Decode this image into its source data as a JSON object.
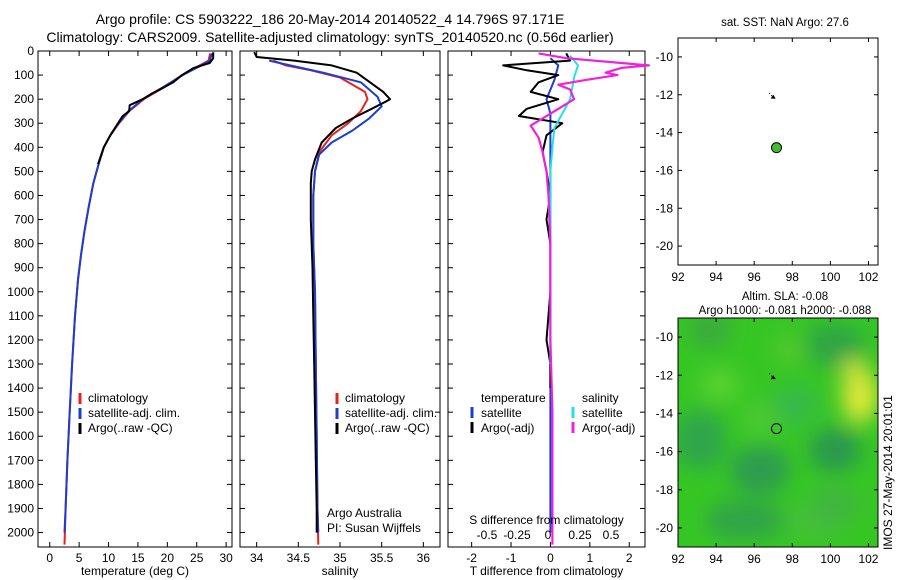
{
  "header": {
    "line1": "Argo profile: CS 5903222_186 20-May-2014 20140522_4 14.796S 97.171E",
    "line2": "Climatology: CARS2009. Satellite-adjusted climatology: synTS_20140520.nc (0.56d earlier)"
  },
  "map_top": {
    "title": "sat. SST: NaN Argo: 27.6"
  },
  "map_bottom": {
    "title1": "Altim. SLA: -0.08",
    "title2": "Argo h1000: -0.081 h2000: -0.088"
  },
  "stamp": "IMOS 27-May-2014 20:01:01",
  "colors": {
    "clim": "#e8221b",
    "sat": "#1b3ed1",
    "argo": "#000000",
    "ssat": "#22e0e8",
    "sargo": "#ee22dd",
    "map_bg": "#36c624",
    "float_marker": "#3fbf2b"
  },
  "chart_data": [
    {
      "type": "line",
      "name": "temperature",
      "xlabel": "temperature (deg C)",
      "ylabel": "depth",
      "xlim": [
        -2,
        31
      ],
      "ylim": [
        2060,
        0
      ],
      "y_reversed": true,
      "xticks": [
        0,
        5,
        10,
        15,
        20,
        25,
        30
      ],
      "yticks": [
        0,
        100,
        200,
        300,
        400,
        500,
        600,
        700,
        800,
        900,
        1000,
        1100,
        1200,
        1300,
        1400,
        1500,
        1600,
        1700,
        1800,
        1900,
        2000
      ],
      "legend": [
        "climatology",
        "satellite-adj. clim.",
        "Argo(..raw -QC)"
      ],
      "series": [
        {
          "name": "climatology",
          "color": "clim",
          "points": [
            [
              27.3,
              10
            ],
            [
              27.0,
              40
            ],
            [
              25.5,
              60
            ],
            [
              22.5,
              100
            ],
            [
              19.5,
              150
            ],
            [
              16.0,
              200
            ],
            [
              13.5,
              250
            ],
            [
              11.8,
              300
            ],
            [
              10.3,
              350
            ],
            [
              9.2,
              400
            ],
            [
              8.3,
              470
            ],
            [
              7.4,
              550
            ],
            [
              6.6,
              650
            ],
            [
              5.9,
              750
            ],
            [
              5.3,
              850
            ],
            [
              4.8,
              950
            ],
            [
              4.3,
              1100
            ],
            [
              3.8,
              1300
            ],
            [
              3.4,
              1500
            ],
            [
              3.0,
              1700
            ],
            [
              2.7,
              1900
            ],
            [
              2.5,
              2050
            ]
          ]
        },
        {
          "name": "satellite-adj. clim.",
          "color": "sat",
          "points": [
            [
              27.6,
              10
            ],
            [
              27.2,
              40
            ],
            [
              25.8,
              60
            ],
            [
              22.6,
              100
            ],
            [
              19.3,
              150
            ],
            [
              15.8,
              200
            ],
            [
              13.4,
              250
            ],
            [
              11.7,
              300
            ],
            [
              10.3,
              350
            ],
            [
              9.2,
              400
            ],
            [
              8.3,
              470
            ],
            [
              7.4,
              550
            ],
            [
              6.6,
              650
            ],
            [
              5.9,
              750
            ],
            [
              5.3,
              850
            ],
            [
              4.8,
              950
            ],
            [
              4.3,
              1100
            ],
            [
              3.8,
              1300
            ],
            [
              3.4,
              1500
            ],
            [
              3.0,
              1700
            ],
            [
              2.7,
              1900
            ],
            [
              2.5,
              2000
            ]
          ]
        },
        {
          "name": "Argo",
          "color": "argo",
          "points": [
            [
              27.8,
              5
            ],
            [
              27.8,
              30
            ],
            [
              27.2,
              50
            ],
            [
              24.5,
              70
            ],
            [
              22.5,
              100
            ],
            [
              21.0,
              130
            ],
            [
              19.5,
              150
            ],
            [
              17.5,
              175
            ],
            [
              15.8,
              200
            ],
            [
              13.6,
              225
            ],
            [
              13.5,
              250
            ],
            [
              12.4,
              270
            ],
            [
              11.6,
              300
            ],
            [
              10.3,
              350
            ],
            [
              9.2,
              400
            ],
            [
              8.2,
              470
            ]
          ]
        }
      ]
    },
    {
      "type": "line",
      "name": "salinity",
      "xlabel": "salinity",
      "xlim": [
        33.8,
        36.2
      ],
      "ylim": [
        2060,
        0
      ],
      "y_reversed": true,
      "xticks": [
        34,
        34.5,
        35,
        35.5,
        36
      ],
      "legend": [
        "climatology",
        "satellite-adj. clim.",
        "Argo(..raw -QC)"
      ],
      "annotation": [
        "Argo Australia",
        "PI: Susan Wijffels"
      ],
      "series": [
        {
          "name": "climatology",
          "color": "clim",
          "points": [
            [
              34.2,
              40
            ],
            [
              34.35,
              60
            ],
            [
              34.65,
              80
            ],
            [
              35.0,
              110
            ],
            [
              35.3,
              170
            ],
            [
              35.33,
              200
            ],
            [
              35.25,
              250
            ],
            [
              35.1,
              300
            ],
            [
              34.9,
              350
            ],
            [
              34.75,
              420
            ],
            [
              34.7,
              500
            ],
            [
              34.68,
              600
            ],
            [
              34.68,
              800
            ],
            [
              34.7,
              1000
            ],
            [
              34.71,
              1300
            ],
            [
              34.72,
              1600
            ],
            [
              34.73,
              1900
            ],
            [
              34.74,
              2050
            ]
          ]
        },
        {
          "name": "satellite-adj. clim.",
          "color": "sat",
          "points": [
            [
              34.15,
              40
            ],
            [
              34.4,
              60
            ],
            [
              34.8,
              90
            ],
            [
              35.25,
              130
            ],
            [
              35.45,
              190
            ],
            [
              35.5,
              230
            ],
            [
              35.35,
              280
            ],
            [
              35.15,
              330
            ],
            [
              34.9,
              380
            ],
            [
              34.75,
              430
            ],
            [
              34.7,
              500
            ],
            [
              34.68,
              600
            ],
            [
              34.68,
              800
            ],
            [
              34.7,
              1000
            ],
            [
              34.71,
              1300
            ],
            [
              34.72,
              1600
            ],
            [
              34.73,
              1900
            ],
            [
              34.74,
              2000
            ]
          ]
        },
        {
          "name": "Argo",
          "color": "argo",
          "points": [
            [
              33.97,
              5
            ],
            [
              34.0,
              25
            ],
            [
              34.45,
              40
            ],
            [
              34.9,
              60
            ],
            [
              35.2,
              90
            ],
            [
              35.52,
              170
            ],
            [
              35.6,
              200
            ],
            [
              35.55,
              210
            ],
            [
              35.38,
              240
            ],
            [
              35.15,
              280
            ],
            [
              34.95,
              320
            ],
            [
              34.78,
              380
            ],
            [
              34.7,
              450
            ],
            [
              34.66,
              500
            ],
            [
              34.65,
              550
            ],
            [
              34.65,
              700
            ],
            [
              34.67,
              900
            ],
            [
              34.68,
              1100
            ],
            [
              34.69,
              1300
            ],
            [
              34.7,
              1500
            ],
            [
              34.71,
              1700
            ],
            [
              34.72,
              1900
            ],
            [
              34.72,
              2000
            ]
          ]
        }
      ]
    },
    {
      "type": "line",
      "name": "differences",
      "xlabel_top": "S difference from climatology",
      "xlabel": "T difference from climatology",
      "xlim": [
        -2.6,
        2.4
      ],
      "ylim": [
        2060,
        0
      ],
      "y_reversed": true,
      "xticks": [
        -2,
        -1,
        0,
        1,
        2
      ],
      "s_ticks": [
        "-0.5",
        "-0.25",
        "0",
        "0.25",
        "0.5"
      ],
      "legend": {
        "temperature_head": "temperature",
        "salinity_head": "salinity",
        "t_sat": "satellite",
        "t_argo": "Argo(-adj)",
        "s_sat": "satellite",
        "s_argo": "Argo(-adj)"
      },
      "series": [
        {
          "name": "T satellite",
          "color": "sat",
          "points": [
            [
              0,
              30
            ],
            [
              0.2,
              60
            ],
            [
              0.1,
              120
            ],
            [
              -0.1,
              200
            ],
            [
              0,
              260
            ],
            [
              0,
              300
            ],
            [
              0,
              500
            ],
            [
              0,
              1000
            ],
            [
              0,
              1500
            ],
            [
              0,
              2000
            ]
          ]
        },
        {
          "name": "T Argo(-adj)",
          "color": "argo",
          "points": [
            [
              0.4,
              10
            ],
            [
              0.5,
              40
            ],
            [
              -1.2,
              60
            ],
            [
              -0.6,
              80
            ],
            [
              0.2,
              100
            ],
            [
              -0.3,
              130
            ],
            [
              -0.5,
              170
            ],
            [
              0.2,
              200
            ],
            [
              -0.6,
              240
            ],
            [
              -0.8,
              270
            ],
            [
              0.3,
              300
            ],
            [
              -0.1,
              350
            ],
            [
              -0.2,
              420
            ],
            [
              -0.1,
              500
            ],
            [
              0,
              600
            ],
            [
              -0.1,
              700
            ],
            [
              0,
              800
            ],
            [
              0,
              1000
            ],
            [
              -0.1,
              1200
            ],
            [
              0,
              1300
            ],
            [
              0,
              1400
            ]
          ]
        },
        {
          "name": "S satellite",
          "color": "ssat",
          "points": [
            [
              0.5,
              20
            ],
            [
              0.7,
              60
            ],
            [
              0.6,
              110
            ],
            [
              0.5,
              200
            ],
            [
              0.3,
              260
            ],
            [
              0.1,
              320
            ],
            [
              0.05,
              400
            ],
            [
              0,
              500
            ],
            [
              0,
              600
            ],
            [
              0,
              800
            ],
            [
              0,
              1000
            ],
            [
              0,
              1200
            ],
            [
              0,
              1300
            ]
          ]
        },
        {
          "name": "S Argo(-adj)",
          "color": "sargo",
          "points": [
            [
              -0.3,
              10
            ],
            [
              0.4,
              30
            ],
            [
              1.8,
              50
            ],
            [
              2.5,
              60
            ],
            [
              1.8,
              70
            ],
            [
              1.4,
              90
            ],
            [
              1.7,
              100
            ],
            [
              0.9,
              120
            ],
            [
              0.2,
              140
            ],
            [
              0.5,
              160
            ],
            [
              0.6,
              200
            ],
            [
              0.3,
              230
            ],
            [
              -0.2,
              280
            ],
            [
              -0.5,
              310
            ],
            [
              -0.3,
              360
            ],
            [
              -0.2,
              420
            ],
            [
              -0.1,
              500
            ],
            [
              -0.05,
              600
            ],
            [
              0,
              800
            ],
            [
              0,
              1000
            ],
            [
              0,
              1200
            ],
            [
              0.05,
              1500
            ],
            [
              0.05,
              2050
            ]
          ]
        }
      ]
    },
    {
      "type": "scatter",
      "name": "sst_map",
      "xlim": [
        92,
        102.5
      ],
      "ylim": [
        -21,
        -9
      ],
      "xticks": [
        92,
        94,
        96,
        98,
        100,
        102
      ],
      "yticks": [
        -10,
        -12,
        -14,
        -16,
        -18,
        -20
      ],
      "track": [
        [
          96.8,
          -11.9
        ],
        [
          97.0,
          -12.15
        ]
      ],
      "float": [
        97.171,
        -14.796
      ]
    },
    {
      "type": "heatmap",
      "name": "sla_map",
      "xlim": [
        92,
        102.5
      ],
      "ylim": [
        -21,
        -9
      ],
      "xticks": [
        92,
        94,
        96,
        98,
        100,
        102
      ],
      "yticks": [
        -10,
        -12,
        -14,
        -16,
        -18,
        -20
      ],
      "track": [
        [
          96.8,
          -11.9
        ],
        [
          97.0,
          -12.15
        ]
      ],
      "float": [
        97.171,
        -14.796
      ]
    }
  ]
}
